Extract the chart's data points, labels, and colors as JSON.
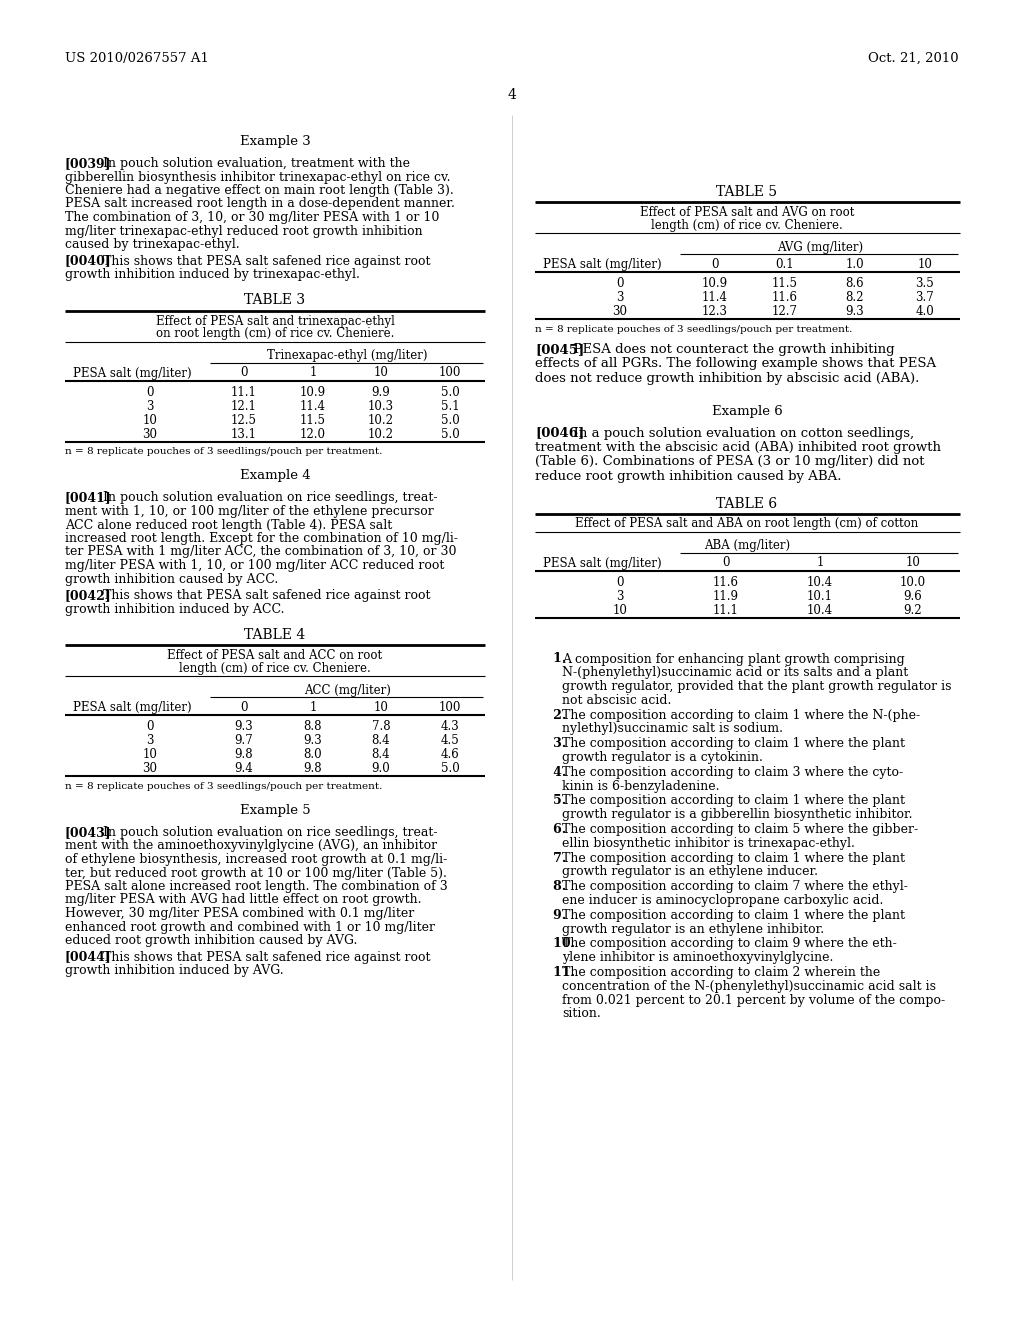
{
  "header_left": "US 2010/0267557 A1",
  "header_right": "Oct. 21, 2010",
  "page_number": "4",
  "background_color": "#ffffff",
  "text_color": "#000000",
  "left_column": {
    "example3_title": "Example 3",
    "table3_title": "TABLE 3",
    "table3_subtitle1": "Effect of PESA salt and trinexapac-ethyl",
    "table3_subtitle2": "on root length (cm) of rice cv. Cheniere.",
    "table3_col_header": "Trinexapac-ethyl (mg/liter)",
    "table3_row_header": "PESA salt (mg/liter)",
    "table3_cols": [
      "0",
      "1",
      "10",
      "100"
    ],
    "table3_rows": [
      "0",
      "3",
      "10",
      "30"
    ],
    "table3_data": [
      [
        "11.1",
        "10.9",
        "9.9",
        "5.0"
      ],
      [
        "12.1",
        "11.4",
        "10.3",
        "5.1"
      ],
      [
        "12.5",
        "11.5",
        "10.2",
        "5.0"
      ],
      [
        "13.1",
        "12.0",
        "10.2",
        "5.0"
      ]
    ],
    "table3_footnote": "n = 8 replicate pouches of 3 seedlings/pouch per treatment.",
    "example4_title": "Example 4",
    "table4_title": "TABLE 4",
    "table4_subtitle1": "Effect of PESA salt and ACC on root",
    "table4_subtitle2": "length (cm) of rice cv. Cheniere.",
    "table4_col_header": "ACC (mg/liter)",
    "table4_row_header": "PESA salt (mg/liter)",
    "table4_cols": [
      "0",
      "1",
      "10",
      "100"
    ],
    "table4_rows": [
      "0",
      "3",
      "10",
      "30"
    ],
    "table4_data": [
      [
        "9.3",
        "8.8",
        "7.8",
        "4.3"
      ],
      [
        "9.7",
        "9.3",
        "8.4",
        "4.5"
      ],
      [
        "9.8",
        "8.0",
        "8.4",
        "4.6"
      ],
      [
        "9.4",
        "9.8",
        "9.0",
        "5.0"
      ]
    ],
    "table4_footnote": "n = 8 replicate pouches of 3 seedlings/pouch per treatment.",
    "example5_title": "Example 5"
  },
  "right_column": {
    "table5_title": "TABLE 5",
    "table5_subtitle1": "Effect of PESA salt and AVG on root",
    "table5_subtitle2": "length (cm) of rice cv. Cheniere.",
    "table5_col_header": "AVG (mg/liter)",
    "table5_row_header": "PESA salt (mg/liter)",
    "table5_cols": [
      "0",
      "0.1",
      "1.0",
      "10"
    ],
    "table5_rows": [
      "0",
      "3",
      "30"
    ],
    "table5_data": [
      [
        "10.9",
        "11.5",
        "8.6",
        "3.5"
      ],
      [
        "11.4",
        "11.6",
        "8.2",
        "3.7"
      ],
      [
        "12.3",
        "12.7",
        "9.3",
        "4.0"
      ]
    ],
    "table5_footnote": "n = 8 replicate pouches of 3 seedlings/pouch per treatment.",
    "example6_title": "Example 6",
    "table6_title": "TABLE 6",
    "table6_subtitle1": "Effect of PESA salt and ABA on root length (cm) of cotton",
    "table6_col_header": "ABA (mg/liter)",
    "table6_row_header": "PESA salt (mg/liter)",
    "table6_cols": [
      "0",
      "1",
      "10"
    ],
    "table6_rows": [
      "0",
      "3",
      "10"
    ],
    "table6_data": [
      [
        "11.6",
        "10.4",
        "10.0"
      ],
      [
        "11.9",
        "10.1",
        "9.6"
      ],
      [
        "11.1",
        "10.4",
        "9.2"
      ]
    ]
  }
}
